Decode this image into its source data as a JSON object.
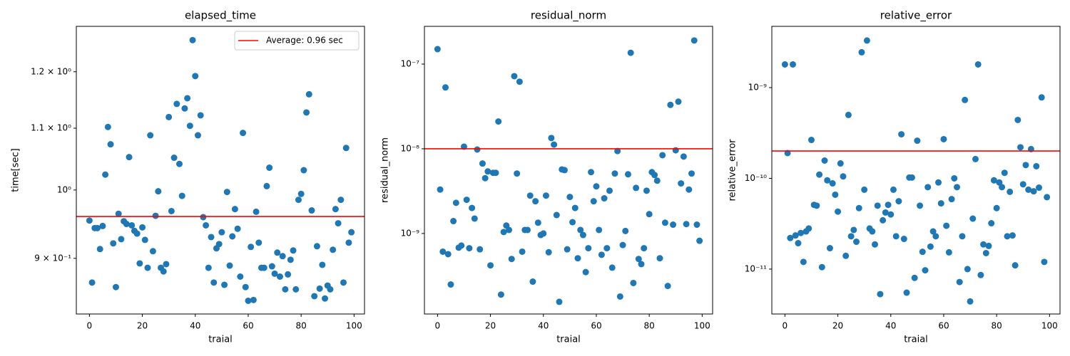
{
  "chart_data": [
    {
      "type": "scatter",
      "title": "elapsed_time",
      "x_label": "traial",
      "y_label": "time[sec]",
      "color": "#1f77b4",
      "yscale": "log",
      "x": [
        0,
        1,
        2,
        3,
        4,
        5,
        6,
        7,
        8,
        9,
        10,
        11,
        12,
        13,
        14,
        15,
        16,
        17,
        18,
        19,
        20,
        21,
        22,
        23,
        24,
        25,
        26,
        27,
        28,
        29,
        30,
        31,
        32,
        33,
        34,
        35,
        36,
        37,
        38,
        39,
        40,
        41,
        42,
        43,
        44,
        45,
        46,
        47,
        48,
        49,
        50,
        51,
        52,
        53,
        54,
        55,
        56,
        57,
        58,
        59,
        60,
        61,
        62,
        63,
        64,
        65,
        66,
        67,
        68,
        69,
        70,
        71,
        72,
        73,
        74,
        75,
        76,
        77,
        78,
        79,
        80,
        81,
        82,
        83,
        84,
        85,
        86,
        87,
        88,
        89,
        90,
        91,
        92,
        93,
        94,
        95,
        96,
        97,
        98,
        99
      ],
      "values": [
        0.954,
        0.867,
        0.943,
        0.943,
        0.913,
        0.946,
        1.024,
        1.102,
        1.073,
        0.921,
        0.861,
        0.964,
        0.927,
        0.953,
        0.949,
        1.052,
        0.947,
        0.939,
        0.935,
        0.893,
        0.944,
        0.926,
        0.887,
        1.088,
        0.91,
        0.961,
        0.998,
        0.887,
        0.882,
        0.892,
        1.119,
        0.968,
        1.051,
        1.142,
        1.041,
        0.991,
        1.134,
        1.152,
        1.104,
        1.26,
        1.192,
        1.088,
        1.122,
        0.959,
        0.947,
        0.887,
        0.93,
        0.867,
        0.914,
        0.92,
        0.937,
        0.864,
        0.997,
        0.89,
        0.931,
        0.971,
        0.942,
        0.875,
        1.092,
        0.861,
        0.843,
        0.916,
        0.844,
        0.967,
        0.922,
        0.887,
        0.887,
        1.006,
        1.035,
        0.889,
        0.879,
        0.908,
        0.875,
        0.903,
        0.858,
        0.878,
        0.898,
        0.911,
        0.858,
        0.985,
        0.994,
        1.031,
        1.127,
        1.159,
        0.969,
        0.849,
        0.917,
        0.859,
        0.891,
        0.846,
        0.863,
        0.858,
        0.912,
        0.971,
        0.95,
        0.985,
        0.867,
        1.067,
        0.922,
        0.937
      ],
      "xlim": [
        -4.95,
        103.95
      ],
      "xticks": [
        0,
        20,
        40,
        60,
        80,
        100
      ],
      "ylim": [
        0.826,
        1.287
      ],
      "yticks": [
        {
          "value": 0.9,
          "label": "9 × 10⁻¹"
        },
        {
          "value": 1,
          "label": "10⁰"
        },
        {
          "value": 1.1,
          "label": "1.1 × 10⁰"
        },
        {
          "value": 1.2,
          "label": "1.2 × 10⁰"
        }
      ],
      "hline": {
        "value": 0.96,
        "color": "#ff0000",
        "label": "Average: 0.96 sec"
      },
      "legend": "upper right"
    },
    {
      "type": "scatter",
      "title": "residual_norm",
      "x_label": "traial",
      "y_label": "residual_norm",
      "color": "#1f77b4",
      "yscale": "log",
      "x": [
        0,
        1,
        2,
        3,
        4,
        5,
        6,
        7,
        8,
        9,
        10,
        11,
        12,
        13,
        14,
        15,
        16,
        17,
        18,
        19,
        20,
        21,
        22,
        23,
        24,
        25,
        26,
        27,
        28,
        29,
        30,
        31,
        32,
        33,
        34,
        35,
        36,
        37,
        38,
        39,
        40,
        41,
        42,
        43,
        44,
        45,
        46,
        47,
        48,
        49,
        50,
        51,
        52,
        53,
        54,
        55,
        56,
        57,
        58,
        59,
        60,
        61,
        62,
        63,
        64,
        65,
        66,
        67,
        68,
        69,
        70,
        71,
        72,
        73,
        74,
        75,
        76,
        77,
        78,
        79,
        80,
        81,
        82,
        83,
        84,
        85,
        86,
        87,
        88,
        89,
        90,
        91,
        92,
        93,
        94,
        95,
        96,
        97,
        98,
        99
      ],
      "values": [
        1.5e-07,
        3.3e-09,
        6.1e-10,
        5.3e-08,
        5.7e-10,
        2.5e-10,
        1.4e-09,
        2.3e-09,
        6.8e-10,
        7.2e-10,
        1.06e-08,
        2.5e-09,
        6.7e-10,
        2e-09,
        1.5e-09,
        9.8e-09,
        6.5e-10,
        6.7e-09,
        4.5e-09,
        5.4e-09,
        4.2e-10,
        5.2e-09,
        5.2e-09,
        2.1e-08,
        1.9e-10,
        1.04e-09,
        1.24e-09,
        1.1e-09,
        5e-10,
        7.2e-08,
        5.1e-09,
        6.2e-08,
        6.1e-10,
        1.1e-09,
        1.1e-09,
        2.8e-09,
        2.7e-10,
        2.4e-09,
        1.34e-09,
        9.6e-10,
        1e-09,
        2.8e-09,
        6e-10,
        1.34e-08,
        1.12e-08,
        1.65e-09,
        1.56e-10,
        5.7e-09,
        5.6e-09,
        6.5e-10,
        2.7e-09,
        1.36e-09,
        2e-09,
        5.1e-10,
        1.1e-09,
        9.6e-10,
        3.5e-10,
        6.7e-10,
        5.3e-09,
        2.4e-09,
        3.6e-09,
        1.1e-09,
        5.6e-10,
        2.6e-09,
        6.7e-10,
        3.2e-09,
        3.95e-10,
        5.1e-09,
        9.4e-09,
        1.8e-10,
        7.3e-10,
        1.07e-09,
        5e-09,
        1.36e-07,
        2.6e-10,
        3.45e-09,
        5e-10,
        4.35e-10,
        6.7e-10,
        3.2e-09,
        1.69e-09,
        5.3e-09,
        4.9e-09,
        4.2e-09,
        5.1e-10,
        8.4e-09,
        1.34e-09,
        2.4e-10,
        3.3e-08,
        1.27e-09,
        9.6e-09,
        3.6e-08,
        3.9e-09,
        8.1e-09,
        1.29e-09,
        3.3e-09,
        5.1e-09,
        1.9e-07,
        1.27e-09,
        8.2e-10
      ],
      "xlim": [
        -4.95,
        103.95
      ],
      "xticks": [
        0,
        20,
        40,
        60,
        80,
        100
      ],
      "ylim": [
        1.12e-10,
        2.79e-07
      ],
      "yticks": [
        {
          "value": 1e-09,
          "label": "10⁻⁹"
        },
        {
          "value": 1e-08,
          "label": "10⁻⁸"
        },
        {
          "value": 1e-07,
          "label": "10⁻⁷"
        }
      ],
      "hline": {
        "value": 1e-08,
        "color": "#ff0000"
      }
    },
    {
      "type": "scatter",
      "title": "relative_error",
      "x_label": "traial",
      "y_label": "relative_error",
      "color": "#1f77b4",
      "yscale": "log",
      "x": [
        0,
        1,
        2,
        3,
        4,
        5,
        6,
        7,
        8,
        9,
        10,
        11,
        12,
        13,
        14,
        15,
        16,
        17,
        18,
        19,
        20,
        21,
        22,
        23,
        24,
        25,
        26,
        27,
        28,
        29,
        30,
        31,
        32,
        33,
        34,
        35,
        36,
        37,
        38,
        39,
        40,
        41,
        42,
        43,
        44,
        45,
        46,
        47,
        48,
        49,
        50,
        51,
        52,
        53,
        54,
        55,
        56,
        57,
        58,
        59,
        60,
        61,
        62,
        63,
        64,
        65,
        66,
        67,
        68,
        69,
        70,
        71,
        72,
        73,
        74,
        75,
        76,
        77,
        78,
        79,
        80,
        81,
        82,
        83,
        84,
        85,
        86,
        87,
        88,
        89,
        90,
        91,
        92,
        93,
        94,
        95,
        96,
        97,
        98,
        99
      ],
      "values": [
        1.8e-09,
        1.9e-10,
        2.2e-11,
        1.8e-09,
        2.35e-11,
        1.93e-11,
        2.5e-11,
        1.2e-11,
        2.6e-11,
        2.8e-11,
        2.65e-10,
        5.1e-11,
        5e-11,
        1.1e-10,
        1.05e-11,
        1.57e-10,
        9.5e-11,
        1.7e-11,
        8.8e-11,
        6.6e-11,
        4.3e-11,
        1.46e-10,
        1.05e-10,
        1.4e-11,
        5e-10,
        2.3e-11,
        2.7e-11,
        2e-11,
        4.7e-11,
        2.45e-09,
        7.5e-11,
        3.3e-09,
        2.8e-11,
        2.6e-11,
        1.87e-11,
        5e-11,
        5.3e-12,
        3.45e-11,
        4.2e-11,
        5.1e-11,
        4e-11,
        7.5e-11,
        2.3e-11,
        5.6e-11,
        3.06e-10,
        2.15e-11,
        5.5e-12,
        1.02e-10,
        1.02e-10,
        8e-12,
        2.6e-10,
        5e-11,
        1.55e-11,
        9.7e-12,
        8e-11,
        1.77e-11,
        2.6e-11,
        2.3e-11,
        9e-11,
        5.3e-11,
        2.7e-10,
        3e-11,
        1.53e-11,
        5.9e-11,
        1e-10,
        8e-11,
        7.2e-12,
        2.3e-11,
        7.3e-10,
        1e-11,
        4.4e-12,
        3.6e-11,
        1.63e-10,
        1.8e-09,
        8.6e-12,
        1.87e-11,
        1.5e-11,
        1.8e-11,
        3.2e-11,
        9.5e-11,
        4.7e-11,
        9e-11,
        8e-11,
        1.15e-10,
        2.3e-11,
        7.1e-11,
        2.35e-11,
        1.1e-11,
        4.4e-10,
        2.2e-10,
        8.6e-11,
        1.4e-10,
        7.5e-11,
        2.1e-10,
        7.2e-11,
        1.36e-10,
        7.9e-11,
        7.8e-10,
        1.2e-11,
        6.2e-11
      ],
      "xlim": [
        -4.95,
        103.95
      ],
      "xticks": [
        0,
        20,
        40,
        60,
        80,
        100
      ],
      "ylim": [
        3.2e-12,
        4.73e-09
      ],
      "yticks": [
        {
          "value": 1e-11,
          "label": "10⁻¹¹"
        },
        {
          "value": 1e-10,
          "label": "10⁻¹⁰"
        },
        {
          "value": 1e-09,
          "label": "10⁻⁹"
        }
      ],
      "hline": {
        "value": 2e-10,
        "color": "#ff0000"
      }
    }
  ]
}
